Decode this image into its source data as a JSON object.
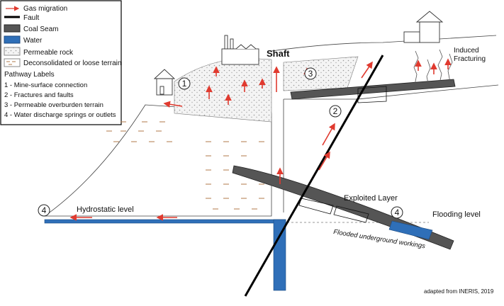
{
  "legend": {
    "items": [
      {
        "key": "gas",
        "label": "Gas migration"
      },
      {
        "key": "fault",
        "label": "Fault"
      },
      {
        "key": "coal",
        "label": "Coal Seam"
      },
      {
        "key": "water",
        "label": "Water"
      },
      {
        "key": "permeable",
        "label": "Permeable rock"
      },
      {
        "key": "loose",
        "label": "Deconsolidated or loose terrain"
      }
    ],
    "pathway_title": "Pathway Labels",
    "pathways": [
      "1 - Mine-surface connection",
      "2 - Fractures and faults",
      "3 - Permeable overburden terrain",
      "4 - Water discharge springs or outlets"
    ]
  },
  "labels": {
    "shaft": "Shaft",
    "induced": "Induced",
    "fracturing": "Fracturing",
    "hydrostatic": "Hydrostatic level",
    "exploited": "Exploited Layer",
    "flooding": "Flooding level",
    "flooded": "Flooded underground workings",
    "credit": "adapted from INERIS, 2019"
  },
  "markers": [
    "1",
    "2",
    "3",
    "4",
    "4"
  ],
  "colors": {
    "gas": "#e03a2f",
    "coal": "#555555",
    "water": "#2f6fb8",
    "fault": "#000000"
  }
}
